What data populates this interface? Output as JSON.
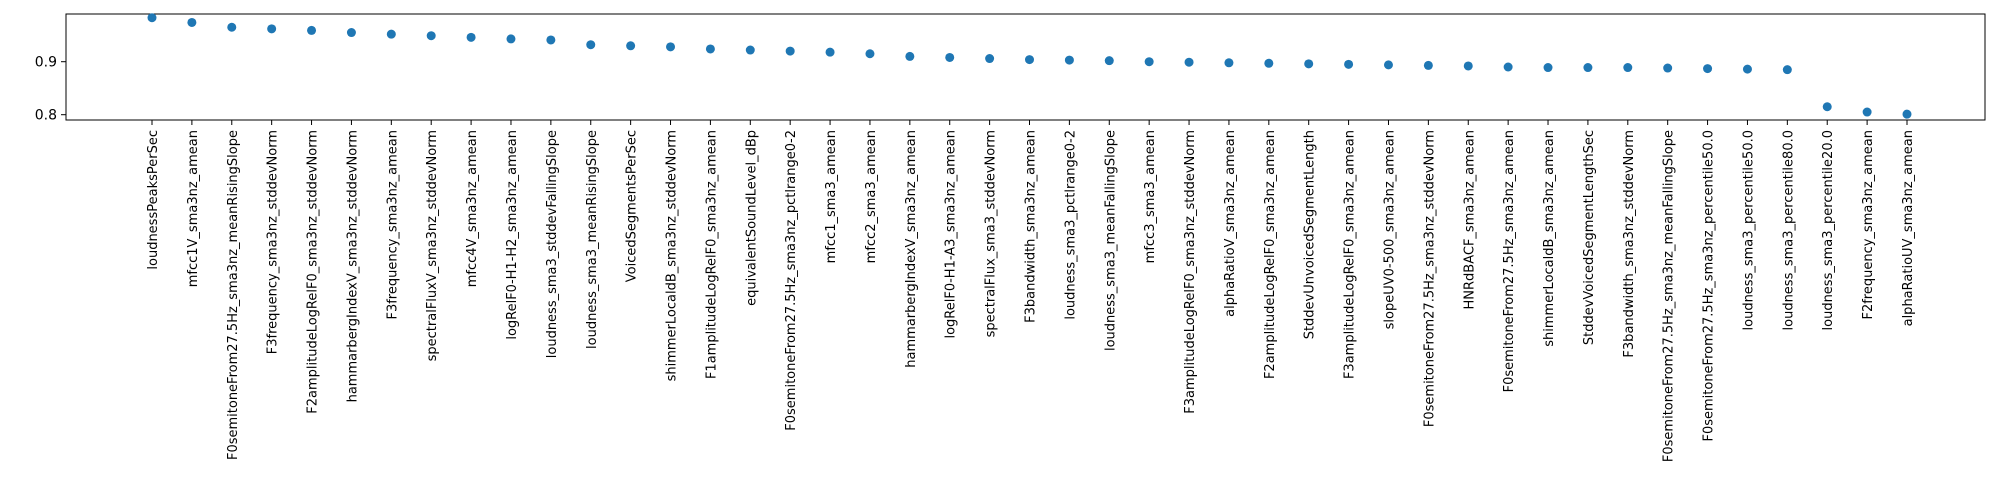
{
  "chart_data": {
    "type": "scatter",
    "title": "",
    "xlabel": "",
    "ylabel": "",
    "ylim": [
      0.79,
      0.99
    ],
    "yticks": [
      0.8,
      0.9
    ],
    "grid": false,
    "marker_color": "#1f77b4",
    "categories": [
      "loudnessPeaksPerSec",
      "mfcc1V_sma3nz_amean",
      "F0semitoneFrom27.5Hz_sma3nz_meanRisingSlope",
      "F3frequency_sma3nz_stddevNorm",
      "F2amplitudeLogRelF0_sma3nz_stddevNorm",
      "hammarbergIndexV_sma3nz_stddevNorm",
      "F3frequency_sma3nz_amean",
      "spectralFluxV_sma3nz_stddevNorm",
      "mfcc4V_sma3nz_amean",
      "logRelF0-H1-H2_sma3nz_amean",
      "loudness_sma3_stddevFallingSlope",
      "loudness_sma3_meanRisingSlope",
      "VoicedSegmentsPerSec",
      "shimmerLocaldB_sma3nz_stddevNorm",
      "F1amplitudeLogRelF0_sma3nz_amean",
      "equivalentSoundLevel_dBp",
      "F0semitoneFrom27.5Hz_sma3nz_pctlrange0-2",
      "mfcc1_sma3_amean",
      "mfcc2_sma3_amean",
      "hammarbergIndexV_sma3nz_amean",
      "logRelF0-H1-A3_sma3nz_amean",
      "spectralFlux_sma3_stddevNorm",
      "F3bandwidth_sma3nz_amean",
      "loudness_sma3_pctlrange0-2",
      "loudness_sma3_meanFallingSlope",
      "mfcc3_sma3_amean",
      "F3amplitudeLogRelF0_sma3nz_stddevNorm",
      "alphaRatioV_sma3nz_amean",
      "F2amplitudeLogRelF0_sma3nz_amean",
      "StddevUnvoicedSegmentLength",
      "F3amplitudeLogRelF0_sma3nz_amean",
      "slopeUV0-500_sma3nz_amean",
      "F0semitoneFrom27.5Hz_sma3nz_stddevNorm",
      "HNRdBACF_sma3nz_amean",
      "F0semitoneFrom27.5Hz_sma3nz_amean",
      "shimmerLocaldB_sma3nz_amean",
      "StddevVoicedSegmentLengthSec",
      "F3bandwidth_sma3nz_stddevNorm",
      "F0semitoneFrom27.5Hz_sma3nz_meanFallingSlope",
      "F0semitoneFrom27.5Hz_sma3nz_percentile50.0",
      "loudness_sma3_percentile50.0",
      "loudness_sma3_percentile80.0",
      "loudness_sma3_percentile20.0",
      "F2frequency_sma3nz_amean",
      "alphaRatioUV_sma3nz_amean"
    ],
    "values": [
      0.983,
      0.974,
      0.965,
      0.962,
      0.959,
      0.955,
      0.952,
      0.949,
      0.946,
      0.943,
      0.941,
      0.932,
      0.93,
      0.928,
      0.924,
      0.922,
      0.92,
      0.918,
      0.915,
      0.91,
      0.908,
      0.906,
      0.904,
      0.903,
      0.902,
      0.9,
      0.899,
      0.898,
      0.897,
      0.896,
      0.895,
      0.894,
      0.893,
      0.892,
      0.89,
      0.889,
      0.889,
      0.889,
      0.888,
      0.887,
      0.886,
      0.885,
      0.815,
      0.805,
      0.801
    ]
  }
}
